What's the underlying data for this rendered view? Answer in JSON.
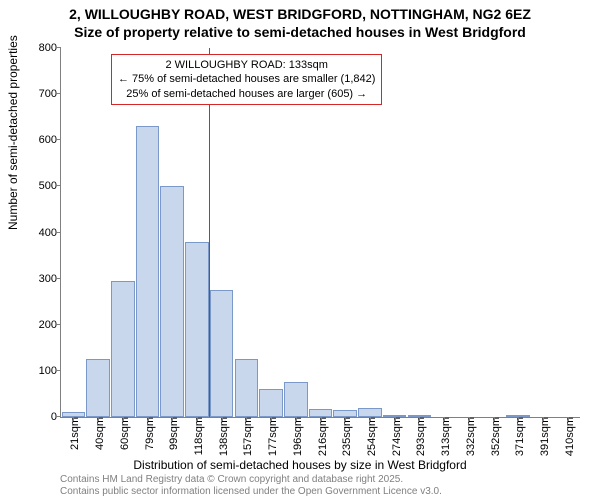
{
  "title": {
    "line1": "2, WILLOUGHBY ROAD, WEST BRIDGFORD, NOTTINGHAM, NG2 6EZ",
    "line2": "Size of property relative to semi-detached houses in West Bridgford",
    "fontsize": 14,
    "fontweight": "bold",
    "color": "#000000"
  },
  "chart": {
    "type": "histogram",
    "background_color": "#ffffff",
    "bar_fill": "#c9d7ec",
    "bar_border": "#7a99c9",
    "axis_color": "#808080",
    "ylim": [
      0,
      800
    ],
    "ytick_step": 100,
    "yticks": [
      0,
      100,
      200,
      300,
      400,
      500,
      600,
      700,
      800
    ],
    "xlabels": [
      "21sqm",
      "40sqm",
      "60sqm",
      "79sqm",
      "99sqm",
      "118sqm",
      "138sqm",
      "157sqm",
      "177sqm",
      "196sqm",
      "216sqm",
      "235sqm",
      "254sqm",
      "274sqm",
      "293sqm",
      "313sqm",
      "332sqm",
      "352sqm",
      "371sqm",
      "391sqm",
      "410sqm"
    ],
    "values": [
      10,
      125,
      295,
      630,
      500,
      380,
      275,
      125,
      60,
      75,
      17,
      15,
      20,
      5,
      5,
      0,
      0,
      0,
      5,
      0,
      0
    ],
    "bar_width_ratio": 0.95,
    "ylabel": "Number of semi-detached properties",
    "xlabel": "Distribution of semi-detached houses by size in West Bridgford",
    "label_fontsize": 12,
    "tick_fontsize": 11
  },
  "reference_line": {
    "bin_index": 5,
    "color": "#d62728",
    "width": 1.5
  },
  "annotation": {
    "line1": "2 WILLOUGHBY ROAD: 133sqm",
    "line2": "← 75% of semi-detached houses are smaller (1,842)",
    "line3": "25% of semi-detached houses are larger (605) →",
    "border_color": "#d62728",
    "background": "#ffffff",
    "fontsize": 11
  },
  "footnote": {
    "line1": "Contains HM Land Registry data © Crown copyright and database right 2025.",
    "line2": "Contains public sector information licensed under the Open Government Licence v3.0.",
    "color": "#808080",
    "fontsize": 10
  }
}
